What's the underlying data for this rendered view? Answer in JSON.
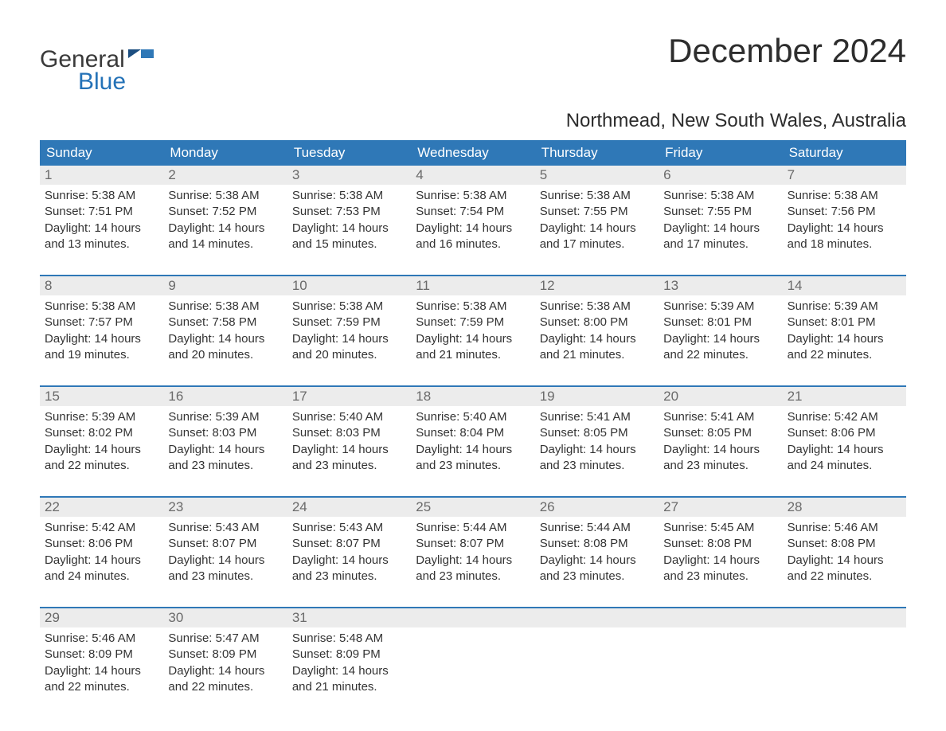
{
  "brand": {
    "general": "General",
    "blue": "Blue"
  },
  "title": "December 2024",
  "location": "Northmead, New South Wales, Australia",
  "colors": {
    "header_bg": "#2f78b7",
    "header_text": "#ffffff",
    "rule": "#2f78b7",
    "daynum_bg": "#ececec",
    "daynum_text": "#6a6a6a",
    "body_text": "#333333",
    "logo_blue": "#2472b7",
    "logo_grey": "#3a3a3a",
    "page_bg": "#ffffff"
  },
  "layout": {
    "columns": 7,
    "dow_fontsize": 17,
    "daynum_fontsize": 17,
    "detail_fontsize": 15,
    "title_fontsize": 42,
    "location_fontsize": 24
  },
  "dow": [
    "Sunday",
    "Monday",
    "Tuesday",
    "Wednesday",
    "Thursday",
    "Friday",
    "Saturday"
  ],
  "weeks": [
    [
      {
        "n": "1",
        "sunrise": "5:38 AM",
        "sunset": "7:51 PM",
        "daylight": "14 hours and 13 minutes."
      },
      {
        "n": "2",
        "sunrise": "5:38 AM",
        "sunset": "7:52 PM",
        "daylight": "14 hours and 14 minutes."
      },
      {
        "n": "3",
        "sunrise": "5:38 AM",
        "sunset": "7:53 PM",
        "daylight": "14 hours and 15 minutes."
      },
      {
        "n": "4",
        "sunrise": "5:38 AM",
        "sunset": "7:54 PM",
        "daylight": "14 hours and 16 minutes."
      },
      {
        "n": "5",
        "sunrise": "5:38 AM",
        "sunset": "7:55 PM",
        "daylight": "14 hours and 17 minutes."
      },
      {
        "n": "6",
        "sunrise": "5:38 AM",
        "sunset": "7:55 PM",
        "daylight": "14 hours and 17 minutes."
      },
      {
        "n": "7",
        "sunrise": "5:38 AM",
        "sunset": "7:56 PM",
        "daylight": "14 hours and 18 minutes."
      }
    ],
    [
      {
        "n": "8",
        "sunrise": "5:38 AM",
        "sunset": "7:57 PM",
        "daylight": "14 hours and 19 minutes."
      },
      {
        "n": "9",
        "sunrise": "5:38 AM",
        "sunset": "7:58 PM",
        "daylight": "14 hours and 20 minutes."
      },
      {
        "n": "10",
        "sunrise": "5:38 AM",
        "sunset": "7:59 PM",
        "daylight": "14 hours and 20 minutes."
      },
      {
        "n": "11",
        "sunrise": "5:38 AM",
        "sunset": "7:59 PM",
        "daylight": "14 hours and 21 minutes."
      },
      {
        "n": "12",
        "sunrise": "5:38 AM",
        "sunset": "8:00 PM",
        "daylight": "14 hours and 21 minutes."
      },
      {
        "n": "13",
        "sunrise": "5:39 AM",
        "sunset": "8:01 PM",
        "daylight": "14 hours and 22 minutes."
      },
      {
        "n": "14",
        "sunrise": "5:39 AM",
        "sunset": "8:01 PM",
        "daylight": "14 hours and 22 minutes."
      }
    ],
    [
      {
        "n": "15",
        "sunrise": "5:39 AM",
        "sunset": "8:02 PM",
        "daylight": "14 hours and 22 minutes."
      },
      {
        "n": "16",
        "sunrise": "5:39 AM",
        "sunset": "8:03 PM",
        "daylight": "14 hours and 23 minutes."
      },
      {
        "n": "17",
        "sunrise": "5:40 AM",
        "sunset": "8:03 PM",
        "daylight": "14 hours and 23 minutes."
      },
      {
        "n": "18",
        "sunrise": "5:40 AM",
        "sunset": "8:04 PM",
        "daylight": "14 hours and 23 minutes."
      },
      {
        "n": "19",
        "sunrise": "5:41 AM",
        "sunset": "8:05 PM",
        "daylight": "14 hours and 23 minutes."
      },
      {
        "n": "20",
        "sunrise": "5:41 AM",
        "sunset": "8:05 PM",
        "daylight": "14 hours and 23 minutes."
      },
      {
        "n": "21",
        "sunrise": "5:42 AM",
        "sunset": "8:06 PM",
        "daylight": "14 hours and 24 minutes."
      }
    ],
    [
      {
        "n": "22",
        "sunrise": "5:42 AM",
        "sunset": "8:06 PM",
        "daylight": "14 hours and 24 minutes."
      },
      {
        "n": "23",
        "sunrise": "5:43 AM",
        "sunset": "8:07 PM",
        "daylight": "14 hours and 23 minutes."
      },
      {
        "n": "24",
        "sunrise": "5:43 AM",
        "sunset": "8:07 PM",
        "daylight": "14 hours and 23 minutes."
      },
      {
        "n": "25",
        "sunrise": "5:44 AM",
        "sunset": "8:07 PM",
        "daylight": "14 hours and 23 minutes."
      },
      {
        "n": "26",
        "sunrise": "5:44 AM",
        "sunset": "8:08 PM",
        "daylight": "14 hours and 23 minutes."
      },
      {
        "n": "27",
        "sunrise": "5:45 AM",
        "sunset": "8:08 PM",
        "daylight": "14 hours and 23 minutes."
      },
      {
        "n": "28",
        "sunrise": "5:46 AM",
        "sunset": "8:08 PM",
        "daylight": "14 hours and 22 minutes."
      }
    ],
    [
      {
        "n": "29",
        "sunrise": "5:46 AM",
        "sunset": "8:09 PM",
        "daylight": "14 hours and 22 minutes."
      },
      {
        "n": "30",
        "sunrise": "5:47 AM",
        "sunset": "8:09 PM",
        "daylight": "14 hours and 22 minutes."
      },
      {
        "n": "31",
        "sunrise": "5:48 AM",
        "sunset": "8:09 PM",
        "daylight": "14 hours and 21 minutes."
      },
      null,
      null,
      null,
      null
    ]
  ],
  "labels": {
    "sunrise_prefix": "Sunrise: ",
    "sunset_prefix": "Sunset: ",
    "daylight_prefix": "Daylight: "
  }
}
